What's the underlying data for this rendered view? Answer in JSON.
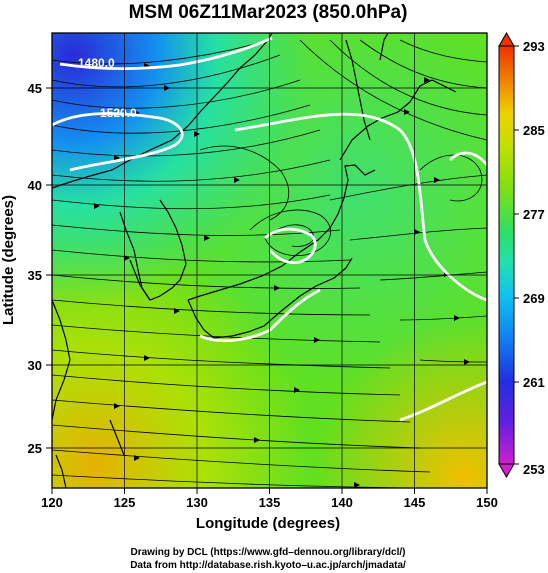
{
  "title": "MSM 06Z11Mar2023 (850.0hPa)",
  "x_axis": {
    "label": "Longitude (degrees)",
    "ticks": [
      "120",
      "125",
      "130",
      "135",
      "140",
      "145",
      "150"
    ],
    "range": [
      120,
      150
    ]
  },
  "y_axis": {
    "label": "Latitude  (degrees)",
    "ticks": [
      "25",
      "30",
      "35",
      "40",
      "45"
    ],
    "range": [
      22.4,
      47.6
    ]
  },
  "colorbar": {
    "ticks": [
      "293",
      "285",
      "277",
      "269",
      "261",
      "253"
    ],
    "range": [
      253,
      293
    ],
    "colors": [
      "#d020d0",
      "#8020e0",
      "#2020e0",
      "#1060f0",
      "#10a0f0",
      "#10d0e0",
      "#20e0a0",
      "#30e060",
      "#60e020",
      "#a0e000",
      "#d0e000",
      "#f0c000",
      "#f08000",
      "#f04000"
    ]
  },
  "contour_labels": [
    "1480.0",
    "1520.0"
  ],
  "credits": {
    "line1": "Drawing by DCL (https://www.gfd–dennou.org/library/dcl/)",
    "line2": "Data from http://database.rish.kyoto–u.ac.jp/arch/jmadata/"
  }
}
